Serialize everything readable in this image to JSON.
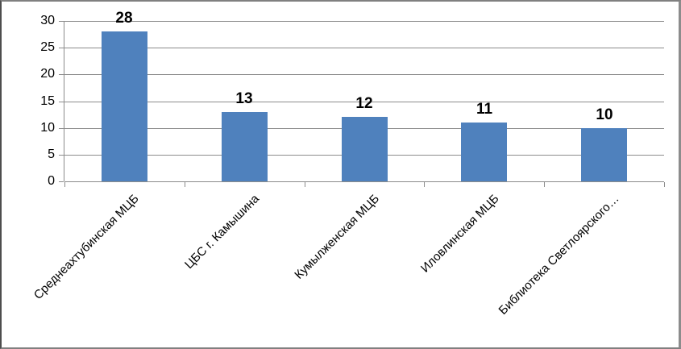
{
  "chart_data": {
    "type": "bar",
    "title": "",
    "xlabel": "",
    "ylabel": "",
    "categories": [
      "Среднеахтубинская МЦБ",
      "ЦБС г. Камышина",
      "Кумылженская МЦБ",
      "Иловлинская МЦБ",
      "Библиотека Светлоярского…"
    ],
    "values": [
      28,
      13,
      12,
      11,
      10
    ],
    "data_labels": [
      "28",
      "13",
      "12",
      "11",
      "10"
    ],
    "yticks": [
      "30",
      "25",
      "20",
      "15",
      "10",
      "5",
      "0"
    ],
    "ytick_values": [
      30,
      25,
      20,
      15,
      10,
      5,
      0
    ],
    "ylim": [
      0,
      30
    ],
    "grid": true,
    "legend": false,
    "show_data_labels": true,
    "colors": {
      "bar": "#4f81bd",
      "gridline": "#8c8c8c",
      "axis": "#8c8c8c",
      "text": "#000000",
      "frame_border": "#808080"
    }
  }
}
